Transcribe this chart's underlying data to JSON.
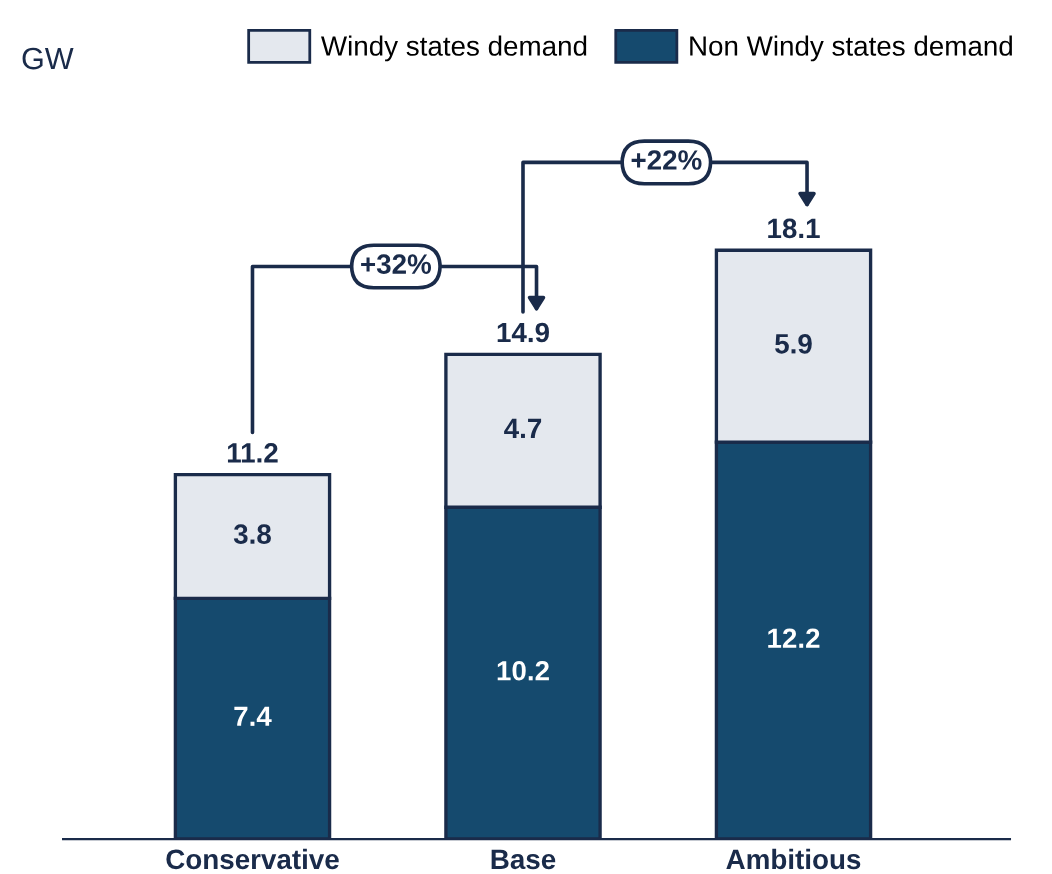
{
  "chart_data": {
    "type": "bar",
    "stacked": true,
    "categories": [
      "Conservative",
      "Base",
      "Ambitious"
    ],
    "series": [
      {
        "name": "Non Windy states demand",
        "color": "#154a6e",
        "values": [
          7.4,
          10.2,
          12.2
        ]
      },
      {
        "name": "Windy states demand",
        "color": "#e4e8ee",
        "values": [
          3.8,
          4.7,
          5.9
        ]
      }
    ],
    "data_labels": true,
    "totals": [
      "11.2",
      "14.9",
      "18.1"
    ],
    "annotations": [
      "GW",
      "+32%",
      "+22%"
    ],
    "legend": "top",
    "grid": false
  }
}
